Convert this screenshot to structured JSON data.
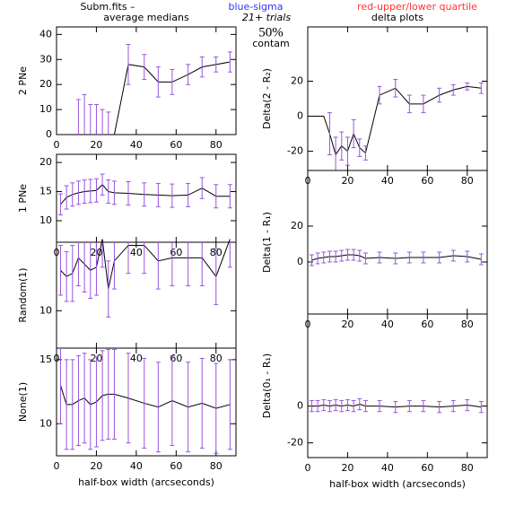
{
  "header": {
    "source": "Subm.fits  –",
    "sigma": "blue-sigma",
    "quartile": "red-upper/lower quartile",
    "left_title": "average medians",
    "trials": "21+ trials",
    "contam_pct": "50%",
    "contam": "contam",
    "right_title": "delta plots"
  },
  "chart_data": [
    {
      "type": "line",
      "ylabel": "2 PNe",
      "x": [
        2,
        5,
        8,
        11,
        14,
        17,
        20,
        23,
        26,
        29,
        36,
        44,
        51,
        58,
        66,
        73,
        80,
        87
      ],
      "values": [
        0,
        0,
        0,
        0,
        0,
        0,
        0,
        0,
        0,
        0,
        28,
        27,
        21,
        21,
        24,
        27,
        28,
        29
      ],
      "errors": [
        0,
        0,
        0,
        14,
        16,
        12,
        12,
        10,
        9,
        0,
        8,
        5,
        6,
        5,
        4,
        4,
        3,
        4
      ],
      "xlim": [
        0,
        90
      ],
      "ylim": [
        0,
        43
      ],
      "xticks": [
        0,
        20,
        40,
        60,
        80
      ],
      "yticks": [
        0,
        10,
        20,
        30,
        40
      ],
      "color": "#000000",
      "error_color": "#9955dd"
    },
    {
      "type": "line",
      "ylabel": "1 PNe",
      "x": [
        2,
        5,
        8,
        11,
        14,
        17,
        20,
        23,
        26,
        29,
        36,
        44,
        51,
        58,
        66,
        73,
        80,
        87
      ],
      "values": [
        12.8,
        14,
        14.5,
        14.8,
        15,
        15.1,
        15.2,
        16.2,
        15,
        14.8,
        14.7,
        14.5,
        14.4,
        14.3,
        14.4,
        15.6,
        14.2,
        14.2
      ],
      "errors": [
        1.8,
        2,
        2,
        2,
        2,
        2,
        2,
        1.8,
        2,
        2,
        2,
        2,
        2,
        2,
        2,
        1.8,
        2,
        2
      ],
      "xlim": [
        0,
        90
      ],
      "ylim": [
        6.3,
        21.4
      ],
      "xticks": [
        0,
        20,
        40,
        60,
        80
      ],
      "yticks": [
        10,
        15,
        20
      ],
      "color": "#000000",
      "error_color": "#9955dd"
    },
    {
      "type": "line",
      "ylabel": "Random(1)",
      "x": [
        2,
        5,
        8,
        11,
        14,
        17,
        20,
        23,
        26,
        29,
        36,
        44,
        51,
        58,
        66,
        73,
        80,
        87
      ],
      "values": [
        11.3,
        11.1,
        11.2,
        11.7,
        11.5,
        11.3,
        11.4,
        12.3,
        10.7,
        11.6,
        12.1,
        12.1,
        11.6,
        11.7,
        11.7,
        11.7,
        11.1,
        12.3
      ],
      "errors": [
        0.8,
        0.8,
        0.9,
        0.9,
        0.9,
        0.9,
        0.9,
        0.9,
        0.9,
        0.9,
        0.9,
        0.9,
        0.9,
        0.9,
        0.9,
        0.9,
        0.9,
        0.9
      ],
      "xlim": [
        0,
        90
      ],
      "ylim": [
        8.8,
        12.2
      ],
      "xticks": [
        0,
        20,
        40,
        60,
        80
      ],
      "yticks": [
        10
      ],
      "color": "#000000",
      "error_color": "#9955dd"
    },
    {
      "type": "line",
      "ylabel": "None(1)",
      "xlabel": "half-box width (arcseconds)",
      "x": [
        2,
        5,
        8,
        11,
        14,
        17,
        20,
        23,
        26,
        29,
        36,
        44,
        51,
        58,
        66,
        73,
        80,
        87
      ],
      "values": [
        13,
        11.5,
        11.5,
        11.8,
        12,
        11.5,
        11.7,
        12.2,
        12.3,
        12.3,
        12,
        11.6,
        11.3,
        11.8,
        11.3,
        11.6,
        11.2,
        11.5
      ],
      "errors": [
        3,
        3.5,
        3.5,
        3.5,
        3.5,
        3.5,
        3.5,
        3.5,
        3.5,
        3.5,
        3.5,
        3.5,
        3.5,
        3.5,
        3.5,
        3.5,
        3.5,
        3.5
      ],
      "xlim": [
        0,
        90
      ],
      "ylim": [
        7.5,
        15.9
      ],
      "xticks": [
        0,
        20,
        40,
        60,
        80
      ],
      "yticks": [
        10,
        15
      ],
      "color": "#000000",
      "error_color": "#9955dd"
    },
    {
      "type": "line",
      "ylabel": "Delta(2 - R₂)",
      "x": [
        2,
        5,
        8,
        11,
        14,
        17,
        20,
        23,
        26,
        29,
        36,
        44,
        51,
        58,
        66,
        73,
        80,
        87
      ],
      "values": [
        0,
        0,
        0,
        -10,
        -22,
        -17,
        -20,
        -10,
        -18,
        -21,
        12,
        16,
        7,
        7,
        12,
        15,
        17,
        16
      ],
      "errors": [
        0,
        0,
        0,
        12,
        10,
        8,
        8,
        8,
        5,
        4,
        5,
        5,
        5,
        5,
        4,
        3,
        2,
        3
      ],
      "xlim": [
        0,
        90
      ],
      "ylim": [
        -31,
        51
      ],
      "xticks": [
        0,
        20,
        40,
        60,
        80
      ],
      "yticks": [
        -20,
        0,
        20
      ],
      "color": "#000000",
      "error_color": "#9955dd"
    },
    {
      "type": "line",
      "ylabel": "Delta(1 - R₁)",
      "x": [
        2,
        5,
        8,
        11,
        14,
        17,
        20,
        23,
        26,
        29,
        36,
        44,
        51,
        58,
        66,
        73,
        80,
        87
      ],
      "values": [
        1,
        2,
        2.5,
        3,
        3,
        3.5,
        4,
        4,
        3.5,
        2,
        2.5,
        2,
        2.5,
        2.5,
        2.5,
        3.5,
        3,
        1.5
      ],
      "errors": [
        3,
        3,
        3,
        3,
        3,
        3,
        3,
        3,
        3,
        3,
        3,
        3,
        3,
        3,
        3,
        3,
        3,
        3
      ],
      "xlim": [
        0,
        90
      ],
      "ylim": [
        -29,
        51
      ],
      "xticks": [
        0,
        20,
        40,
        60,
        80
      ],
      "yticks": [
        0,
        20
      ],
      "color": "#000000",
      "error_color": "#9955dd"
    },
    {
      "type": "line",
      "ylabel": "Delta(0₁ - R₁)",
      "xlabel": "half-box width (arcseconds)",
      "x": [
        2,
        5,
        8,
        11,
        14,
        17,
        20,
        23,
        26,
        29,
        36,
        44,
        51,
        58,
        66,
        73,
        80,
        87
      ],
      "values": [
        0,
        0,
        0.5,
        0,
        0.5,
        0,
        0.5,
        0,
        1,
        0,
        0,
        -0.5,
        0,
        0,
        -0.5,
        0,
        0.5,
        -0.5
      ],
      "errors": [
        3,
        3,
        3,
        3,
        3,
        3,
        3,
        3,
        3,
        3,
        3,
        3,
        3,
        3,
        3,
        3,
        3,
        3
      ],
      "xlim": [
        0,
        90
      ],
      "ylim": [
        -28,
        50
      ],
      "xticks": [
        0,
        20,
        40,
        60,
        80
      ],
      "yticks": [
        -20,
        0
      ],
      "color": "#000000",
      "error_color": "#9955dd"
    }
  ]
}
